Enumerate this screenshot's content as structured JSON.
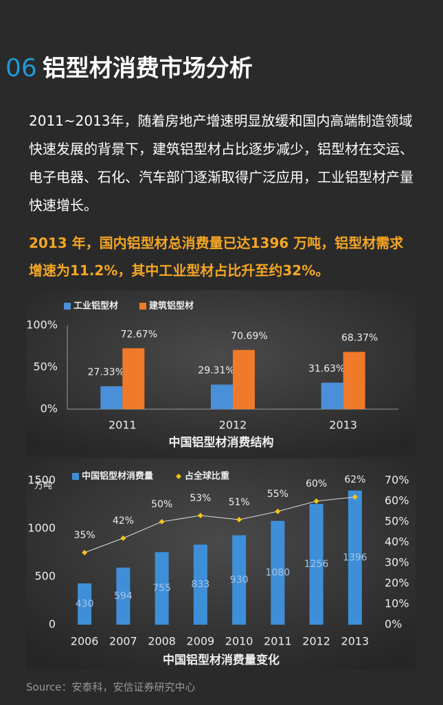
{
  "header": {
    "number": "06",
    "title": "铝型材消费市场分析"
  },
  "paragraph": "2011~2013年，随着房地产增速明显放缓和国内高端制造领域快速发展的背景下，建筑铝型材占比逐步减少，铝型材在交运、电子电器、石化、汽车部门逐渐取得广泛应用，工业铝型材产量快速增长。",
  "highlight": "2013 年，国内铝型材总消费量已达1396 万吨，铝型材需求增速为11.2%，其中工业型材占比升至约32%。",
  "chart_data": [
    {
      "type": "bar",
      "title": "中国铝型材消费结构",
      "categories": [
        "2011",
        "2012",
        "2013"
      ],
      "series": [
        {
          "name": "工业铝型材",
          "color": "#4a90d9",
          "values": [
            27.33,
            29.31,
            31.63
          ],
          "value_labels": [
            "27.33%",
            "29.31%",
            "31.63%"
          ]
        },
        {
          "name": "建筑铝型材",
          "color": "#f07a2a",
          "values": [
            72.67,
            70.69,
            68.37
          ],
          "value_labels": [
            "72.67%",
            "70.69%",
            "68.37%"
          ]
        }
      ],
      "ylim": [
        0,
        100
      ],
      "yticks": [
        {
          "value": 0,
          "label": "0%"
        },
        {
          "value": 50,
          "label": "50%"
        },
        {
          "value": 100,
          "label": "100%"
        }
      ]
    },
    {
      "type": "combo",
      "title": "中国铝型材消费量变化",
      "y_label": "万吨",
      "categories": [
        "2006",
        "2007",
        "2008",
        "2009",
        "2010",
        "2011",
        "2012",
        "2013"
      ],
      "series": [
        {
          "name": "中国铝型材消费量",
          "type": "bar",
          "color": "#3f8fd8",
          "values": [
            430,
            594,
            755,
            833,
            930,
            1080,
            1256,
            1396
          ]
        },
        {
          "name": "占全球比重",
          "type": "line",
          "axis": "y2",
          "color": "#f5c518",
          "values": [
            35,
            42,
            50,
            53,
            51,
            55,
            60,
            62
          ],
          "value_labels": [
            "35%",
            "42%",
            "50%",
            "53%",
            "51%",
            "55%",
            "60%",
            "62%"
          ]
        }
      ],
      "ylim": [
        0,
        1500
      ],
      "yticks": [
        0,
        500,
        1000,
        1500
      ],
      "y2lim": [
        0,
        70
      ],
      "y2ticks": [
        {
          "value": 0,
          "label": "0%"
        },
        {
          "value": 10,
          "label": "10%"
        },
        {
          "value": 20,
          "label": "20%"
        },
        {
          "value": 30,
          "label": "30%"
        },
        {
          "value": 40,
          "label": "40%"
        },
        {
          "value": 50,
          "label": "50%"
        },
        {
          "value": 60,
          "label": "60%"
        },
        {
          "value": 70,
          "label": "70%"
        }
      ]
    }
  ],
  "source": "Source：安泰科，安信证券研究中心"
}
